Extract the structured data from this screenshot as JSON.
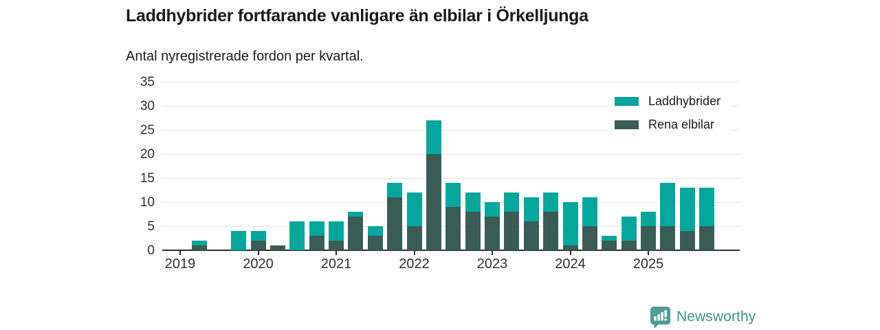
{
  "header": {
    "title": "Laddhybrider fortfarande vanligare än elbilar i Örkelljunga",
    "subtitle": "Antal nyregistrerade fordon per kvartal."
  },
  "chart_data": {
    "type": "bar",
    "stacked": true,
    "title": "Laddhybrider fortfarande vanligare än elbilar i Örkelljunga",
    "subtitle": "Antal nyregistrerade fordon per kvartal.",
    "x": [
      "2019 Q1",
      "2019 Q2",
      "2019 Q3",
      "2019 Q4",
      "2020 Q1",
      "2020 Q2",
      "2020 Q3",
      "2020 Q4",
      "2021 Q1",
      "2021 Q2",
      "2021 Q3",
      "2021 Q4",
      "2022 Q1",
      "2022 Q2",
      "2022 Q3",
      "2022 Q4",
      "2023 Q1",
      "2023 Q2",
      "2023 Q3",
      "2023 Q4",
      "2024 Q1",
      "2024 Q2",
      "2024 Q3",
      "2024 Q4",
      "2025 Q1",
      "2025 Q2",
      "2025 Q3",
      "2025 Q4"
    ],
    "series": [
      {
        "name": "Rena elbilar",
        "color": "#3b5c54",
        "values": [
          0,
          1,
          0,
          0,
          2,
          1,
          0,
          3,
          2,
          7,
          3,
          11,
          5,
          20,
          9,
          8,
          7,
          8,
          6,
          8,
          1,
          5,
          2,
          2,
          5,
          5,
          4,
          5
        ]
      },
      {
        "name": "Laddhybrider",
        "color": "#05a79b",
        "values": [
          0,
          1,
          0,
          4,
          2,
          0,
          6,
          3,
          4,
          1,
          2,
          3,
          7,
          7,
          5,
          4,
          3,
          4,
          5,
          4,
          9,
          6,
          1,
          5,
          3,
          9,
          9,
          8
        ]
      }
    ],
    "totals": [
      0,
      2,
      0,
      4,
      4,
      1,
      6,
      6,
      6,
      8,
      5,
      14,
      12,
      27,
      14,
      12,
      10,
      12,
      11,
      12,
      10,
      11,
      3,
      7,
      8,
      14,
      13,
      13
    ],
    "legend": [
      {
        "label": "Laddhybrider",
        "color": "#05a79b"
      },
      {
        "label": "Rena elbilar",
        "color": "#3b5c54"
      }
    ],
    "legend_position": "top-right",
    "yticks": [
      0,
      5,
      10,
      15,
      20,
      25,
      30,
      35
    ],
    "ylim": [
      0,
      35
    ],
    "year_labels": [
      "2019",
      "2020",
      "2021",
      "2022",
      "2023",
      "2024",
      "2025"
    ],
    "grid": true,
    "xlabel": "",
    "ylabel": ""
  },
  "colors": {
    "laddhybrider": "#05a79b",
    "rena_elbilar": "#3b5c54",
    "grid": "#e4e4e4",
    "axis": "#2b2b2b",
    "brand": "#41948c"
  },
  "footer": {
    "brand": "Newsworthy",
    "logo_icon": "bar-chart-speech-bubble-icon"
  }
}
